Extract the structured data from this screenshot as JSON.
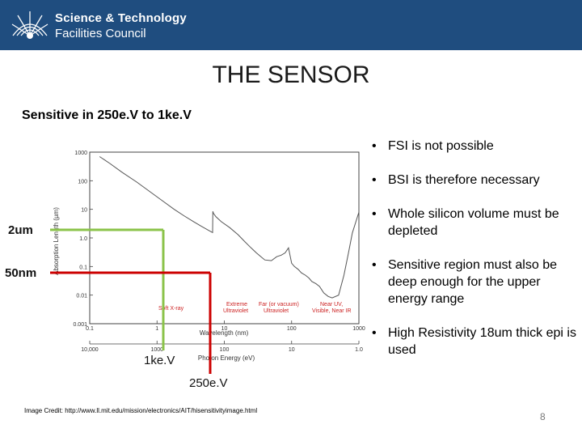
{
  "header": {
    "org_name_line1": "Science & Technology",
    "org_name_line2": "Facilities Council",
    "brand_color": "#1f4d7f"
  },
  "slide": {
    "title": "THE SENSOR",
    "subtitle": "Sensitive in 250e.V to 1ke.V",
    "bullets": [
      "FSI is not possible",
      "BSI is therefore necessary",
      "Whole silicon volume must be depleted",
      "Sensitive region must also be deep enough for the upper energy range",
      "High Resistivity 18um thick epi is used"
    ],
    "image_credit": "Image Credit: http://www.ll.mit.edu/mission/electronics/AIT/hisensitivityimage.html",
    "page_number": "8"
  },
  "chart_data": {
    "type": "line",
    "ylabel": "Absorption Length (µm)",
    "xlabel": "Wavelength (nm)",
    "x2label": "Photon Energy (eV)",
    "x_scale": "log",
    "y_scale": "log",
    "xlim": [
      0.1,
      1000
    ],
    "ylim": [
      0.001,
      1000
    ],
    "y_ticks": [
      "1000",
      "100",
      "10",
      "1.0",
      "0.1",
      "0.01",
      "0.001"
    ],
    "x_ticks": [
      "0.1",
      "1",
      "10",
      "100",
      "1000"
    ],
    "x2_ticks": [
      "10,000",
      "1000",
      "100",
      "10",
      "1.0"
    ],
    "region_labels": [
      "Soft X-ray",
      "Extreme Ultraviolet",
      "Far (or vacuum) Ultraviolet",
      "Near UV, Visible, Near IR"
    ],
    "series": [
      {
        "x": [
          0.14,
          0.2,
          0.3,
          0.5,
          0.8,
          1.2,
          1.8,
          2.5,
          3.5,
          4.5,
          5.5,
          6.5,
          6.7,
          6.75,
          6.9,
          7.5,
          9,
          12,
          16,
          20,
          25,
          30,
          35,
          40,
          50,
          60,
          70,
          80,
          90,
          100,
          110,
          125,
          140,
          160,
          180,
          200,
          230,
          260,
          300,
          350,
          400,
          500,
          600,
          700,
          800,
          1000
        ],
        "y": [
          700,
          400,
          200,
          90,
          40,
          20,
          10,
          6,
          3.7,
          2.6,
          2.0,
          1.6,
          1.55,
          8.5,
          7.2,
          5.5,
          3.7,
          2.3,
          1.3,
          0.75,
          0.45,
          0.3,
          0.22,
          0.17,
          0.16,
          0.22,
          0.25,
          0.3,
          0.45,
          0.13,
          0.1,
          0.08,
          0.06,
          0.05,
          0.04,
          0.03,
          0.025,
          0.02,
          0.012,
          0.009,
          0.008,
          0.01,
          0.05,
          0.3,
          1.5,
          8
        ]
      }
    ],
    "annotations": [
      {
        "label": "2um",
        "y": 2,
        "x": 1,
        "color": "#8bc34a"
      },
      {
        "label": "50nm",
        "y": 0.05,
        "x": 4,
        "color": "#cc0000"
      }
    ],
    "energy_labels": [
      {
        "label": "1ke.V",
        "color": "#000000"
      },
      {
        "label": "250e.V",
        "color": "#000000"
      }
    ]
  }
}
